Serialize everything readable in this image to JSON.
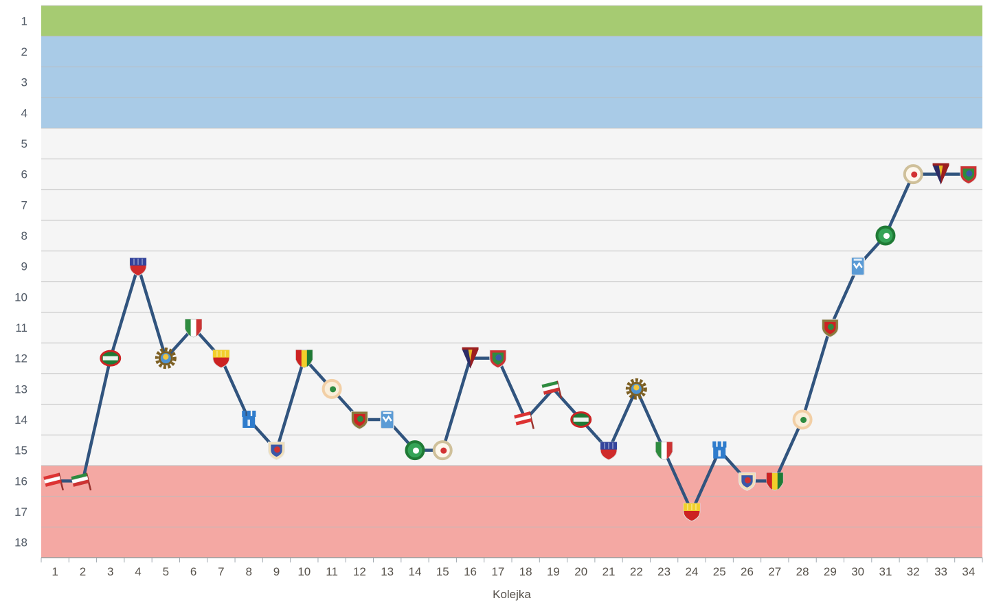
{
  "chart_data": {
    "type": "line",
    "title": "",
    "xlabel": "Kolejka",
    "ylabel": "",
    "x_ticks": [
      1,
      2,
      3,
      4,
      5,
      6,
      7,
      8,
      9,
      10,
      11,
      12,
      13,
      14,
      15,
      16,
      17,
      18,
      19,
      20,
      21,
      22,
      23,
      24,
      25,
      26,
      27,
      28,
      29,
      30,
      31,
      32,
      33,
      34
    ],
    "y_ticks": [
      1,
      2,
      3,
      4,
      5,
      6,
      7,
      8,
      9,
      10,
      11,
      12,
      13,
      14,
      15,
      16,
      17,
      18
    ],
    "y_axis_inverted": true,
    "ylim": [
      1,
      18
    ],
    "xlim": [
      1,
      34
    ],
    "grid": true,
    "legend": "none",
    "x": [
      1,
      2,
      3,
      4,
      5,
      6,
      7,
      8,
      9,
      10,
      11,
      12,
      13,
      14,
      15,
      16,
      17,
      18,
      19,
      20,
      21,
      22,
      23,
      24,
      25,
      26,
      27,
      28,
      29,
      30,
      31,
      32,
      33,
      34
    ],
    "positions": [
      16,
      16,
      12,
      9,
      12,
      11,
      12,
      14,
      15,
      12,
      13,
      14,
      14,
      15,
      15,
      12,
      12,
      14,
      13,
      14,
      15,
      13,
      15,
      17,
      15,
      16,
      16,
      14,
      11,
      9,
      8,
      6,
      6,
      6
    ],
    "line_color": "#31547e",
    "zones": [
      {
        "name": "zone-top-green",
        "from": 1,
        "to": 1,
        "color": "#a6cb72"
      },
      {
        "name": "zone-blue",
        "from": 2,
        "to": 4,
        "color": "#a9cbe7"
      },
      {
        "name": "zone-mid-gray",
        "from": 5,
        "to": 15,
        "color": "#f5f5f5"
      },
      {
        "name": "zone-bottom-red",
        "from": 16,
        "to": 18,
        "color": "#f4a8a3"
      }
    ],
    "marker_note": "each data point is drawn as the opponent club crest; opponents repeat every 17 rounds",
    "opponents": [
      {
        "icon": "crest-flag-red-white-icon",
        "shape": "flag",
        "colors": [
          "#dd3333",
          "#ffffff",
          "#dd3333"
        ]
      },
      {
        "icon": "crest-flag-green-white-red-icon",
        "shape": "flag",
        "colors": [
          "#2e8b3f",
          "#ffffff",
          "#cc3333"
        ]
      },
      {
        "icon": "crest-oval-green-red-icon",
        "shape": "oval",
        "colors": [
          "#1f7a35",
          "#cc2424",
          "#ffffff"
        ]
      },
      {
        "icon": "crest-shield-navy-red-icon",
        "shape": "shield2",
        "colors": [
          "#34449c",
          "#cf2b2b",
          "#ffffff"
        ]
      },
      {
        "icon": "crest-gear-gold-blue-icon",
        "shape": "gear",
        "colors": [
          "#7c5f22",
          "#f2c53d",
          "#4f93d2"
        ]
      },
      {
        "icon": "crest-shield-green-white-red-icon",
        "shape": "shield3",
        "colors": [
          "#2e8b3f",
          "#ffffff",
          "#cc3333"
        ]
      },
      {
        "icon": "crest-shield-yellow-red-icon",
        "shape": "shield2",
        "colors": [
          "#f2cf2a",
          "#cc2222",
          "#ffffff"
        ]
      },
      {
        "icon": "crest-tower-blue-icon",
        "shape": "tower",
        "colors": [
          "#2f7ccc",
          "#ffffff",
          "#2f7ccc"
        ]
      },
      {
        "icon": "crest-shield-cream-blue-red-icon",
        "shape": "shieldring",
        "colors": [
          "#efdfba",
          "#3b59a8",
          "#cc3333"
        ]
      },
      {
        "icon": "crest-shield-red-yellow-green-icon",
        "shape": "shield3",
        "colors": [
          "#cc2222",
          "#f2cf2a",
          "#1f7a35"
        ]
      },
      {
        "icon": "crest-circle-peach-green-icon",
        "shape": "circlering",
        "colors": [
          "#f2cfa5",
          "#faeeda",
          "#2e8b3f"
        ]
      },
      {
        "icon": "crest-shield-khaki-red-green-icon",
        "shape": "shieldring",
        "colors": [
          "#8a7a3e",
          "#cc2222",
          "#2e8b3f"
        ]
      },
      {
        "icon": "crest-rect-blue-white-icon",
        "shape": "rect",
        "colors": [
          "#5b9bd5",
          "#ffffff",
          "#5b9bd5"
        ]
      },
      {
        "icon": "crest-circle-green-icon",
        "shape": "circlering",
        "colors": [
          "#1f7a35",
          "#35a457",
          "#ffffff"
        ]
      },
      {
        "icon": "crest-circle-cream-red-icon",
        "shape": "circlering",
        "colors": [
          "#cfc09a",
          "#fdf7ec",
          "#d23333"
        ]
      },
      {
        "icon": "crest-pennant-navy-maroon-icon",
        "shape": "pennant",
        "colors": [
          "#2c2c66",
          "#9c1f1f",
          "#e8bb22"
        ]
      },
      {
        "icon": "crest-shield-red-green-blue-icon",
        "shape": "shieldring",
        "colors": [
          "#cc3333",
          "#2e8b3f",
          "#3b59a8"
        ]
      }
    ],
    "colors": {
      "grid_line": "#bcbcbc",
      "axis_line": "#9a9a9a",
      "tick_mark": "#a0a8b0",
      "y_label_text": "#515a66",
      "x_label_text": "#57524b",
      "plot_background": "#f5f5f5",
      "page_background": "#ffffff"
    }
  }
}
